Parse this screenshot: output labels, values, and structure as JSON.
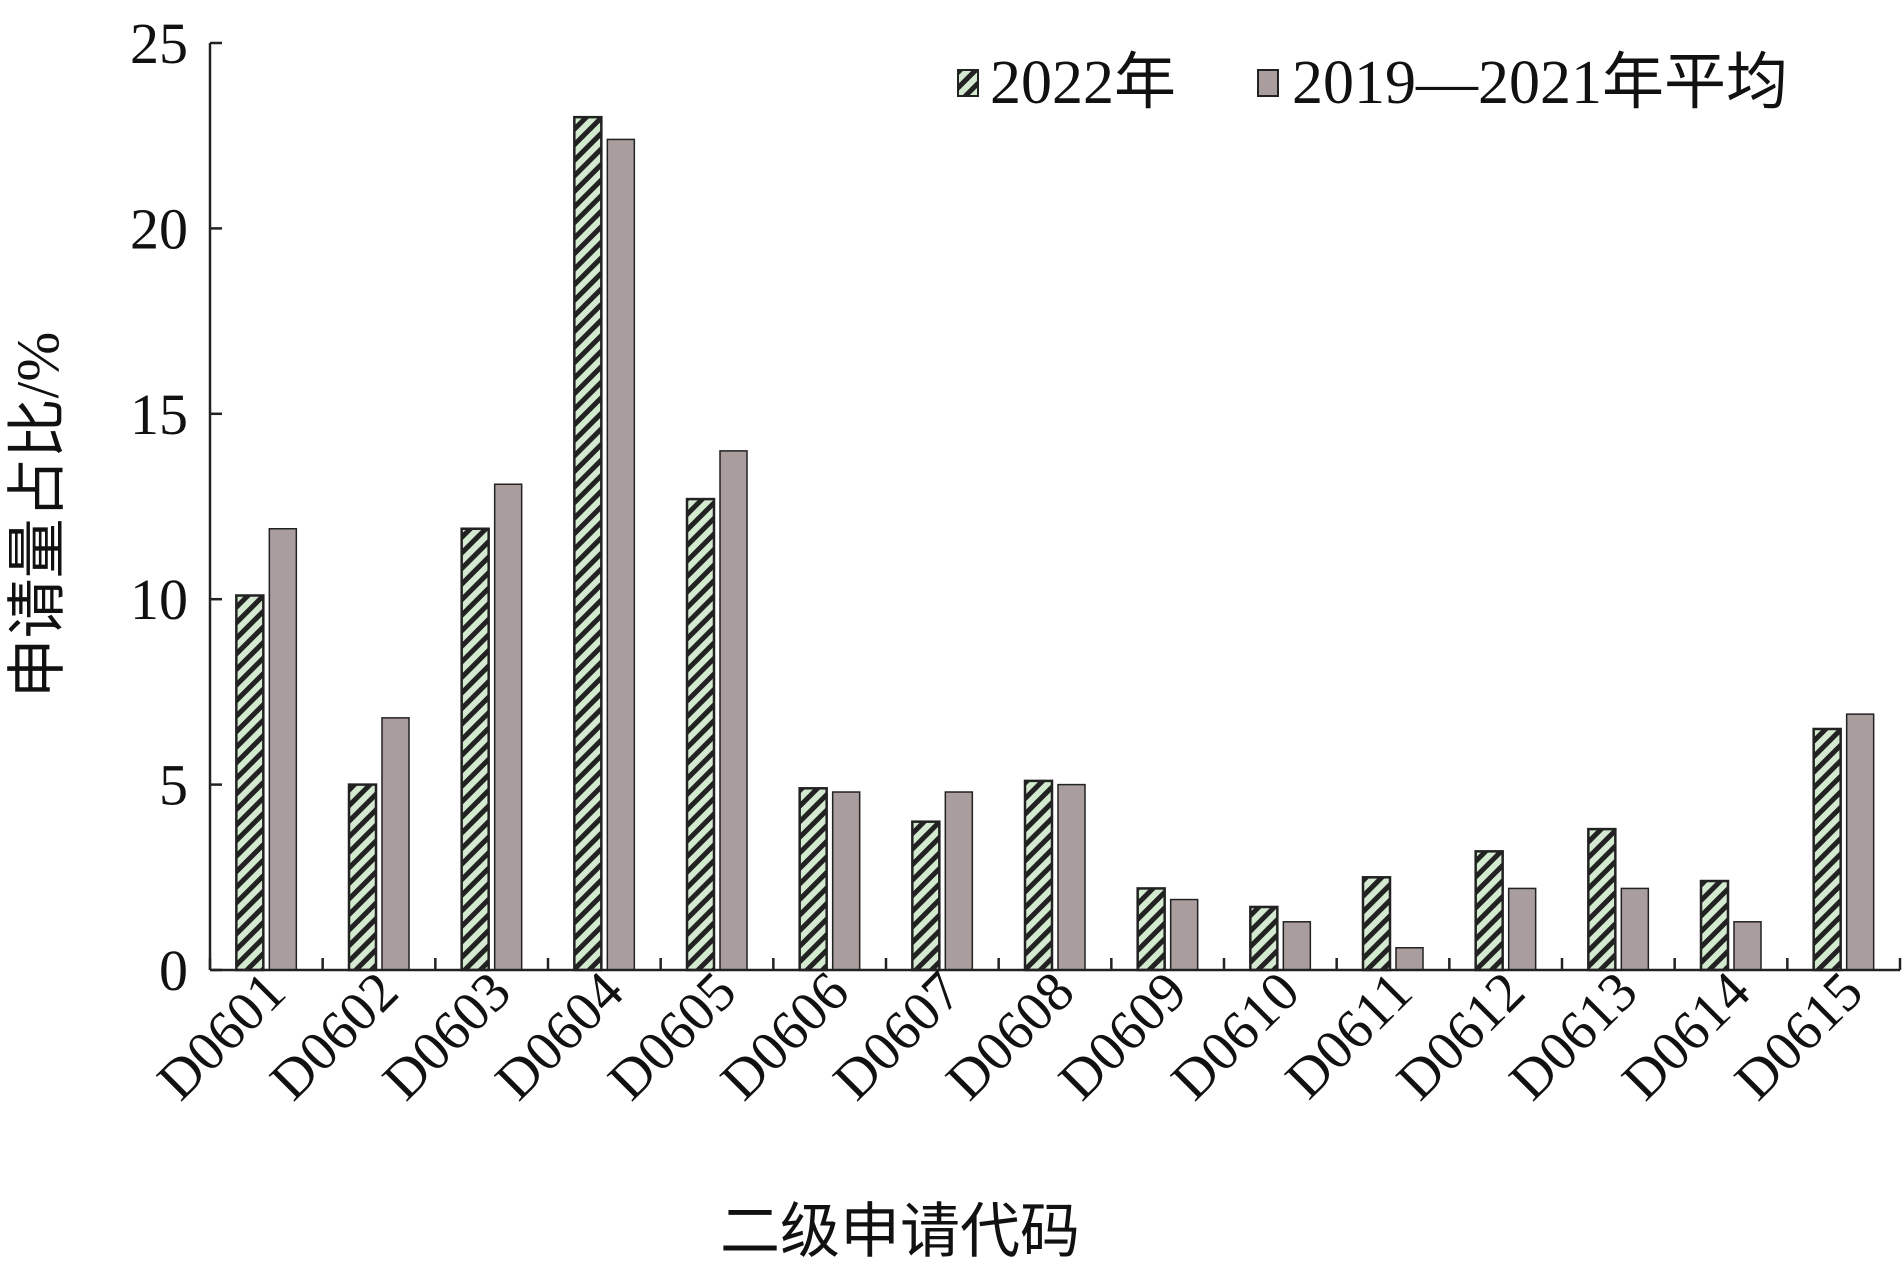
{
  "chart_data": {
    "type": "bar",
    "title": "",
    "xlabel": "二级申请代码",
    "ylabel": "申请量占比/%",
    "ylim": [
      0,
      25
    ],
    "yticks": [
      0,
      5,
      10,
      15,
      20,
      25
    ],
    "grid": false,
    "legend_position": "top-right",
    "categories": [
      "D0601",
      "D0602",
      "D0603",
      "D0604",
      "D0605",
      "D0606",
      "D0607",
      "D0608",
      "D0609",
      "D0610",
      "D0611",
      "D0612",
      "D0613",
      "D0614",
      "D0615"
    ],
    "series": [
      {
        "name": "2022年",
        "pattern": "hatched",
        "color": "#d4ead0",
        "stripe_color": "#222222",
        "values": [
          10.1,
          5.0,
          11.9,
          23.0,
          12.7,
          4.9,
          4.0,
          5.1,
          2.2,
          1.7,
          2.5,
          3.2,
          3.8,
          2.4,
          6.5
        ]
      },
      {
        "name": "2019—2021年平均",
        "pattern": "solid",
        "color": "#a99d9d",
        "values": [
          11.9,
          6.8,
          13.1,
          22.4,
          14.0,
          4.8,
          4.8,
          5.0,
          1.9,
          1.3,
          0.6,
          2.2,
          2.2,
          1.3,
          6.9
        ]
      }
    ]
  }
}
